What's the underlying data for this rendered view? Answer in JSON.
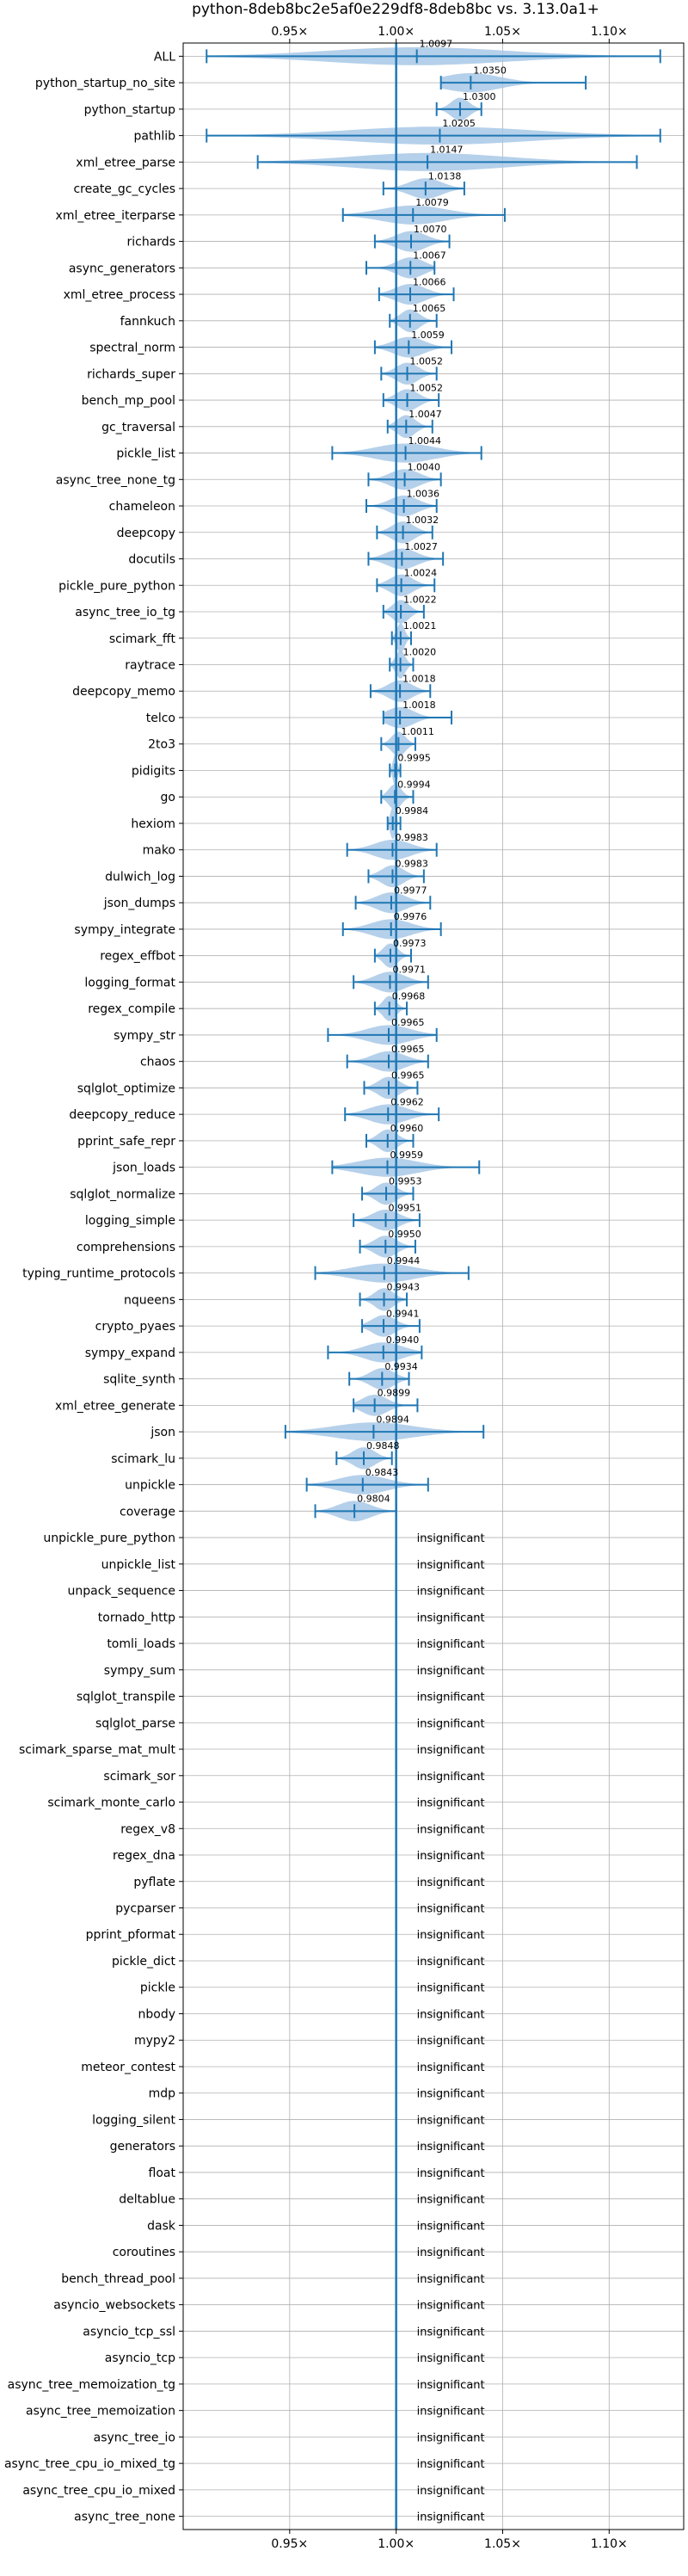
{
  "chart_data": {
    "type": "violin",
    "title": "python-8deb8bc2e5af0e229df8-8deb8bc vs. 3.13.0a1+",
    "xlim": [
      0.9,
      1.135
    ],
    "ticks": [
      0.95,
      1.0,
      1.05,
      1.1
    ],
    "tick_labels": [
      "0.95×",
      "1.00×",
      "1.05×",
      "1.10×"
    ],
    "reference_line": 1.0,
    "insignificant_label": "insignificant",
    "grid": true,
    "benchmarks": [
      {
        "name": "ALL",
        "mean": 1.0097,
        "label": "1.0097",
        "min": 0.911,
        "max": 1.124
      },
      {
        "name": "python_startup_no_site",
        "mean": 1.035,
        "label": "1.0350",
        "min": 1.021,
        "max": 1.089
      },
      {
        "name": "python_startup",
        "mean": 1.03,
        "label": "1.0300",
        "min": 1.019,
        "max": 1.04
      },
      {
        "name": "pathlib",
        "mean": 1.0205,
        "label": "1.0205",
        "min": 0.911,
        "max": 1.124
      },
      {
        "name": "xml_etree_parse",
        "mean": 1.0147,
        "label": "1.0147",
        "min": 0.935,
        "max": 1.113
      },
      {
        "name": "create_gc_cycles",
        "mean": 1.0138,
        "label": "1.0138",
        "min": 0.994,
        "max": 1.032
      },
      {
        "name": "xml_etree_iterparse",
        "mean": 1.0079,
        "label": "1.0079",
        "min": 0.975,
        "max": 1.051
      },
      {
        "name": "richards",
        "mean": 1.007,
        "label": "1.0070",
        "min": 0.99,
        "max": 1.025
      },
      {
        "name": "async_generators",
        "mean": 1.0067,
        "label": "1.0067",
        "min": 0.986,
        "max": 1.018
      },
      {
        "name": "xml_etree_process",
        "mean": 1.0066,
        "label": "1.0066",
        "min": 0.992,
        "max": 1.027
      },
      {
        "name": "fannkuch",
        "mean": 1.0065,
        "label": "1.0065",
        "min": 0.997,
        "max": 1.019
      },
      {
        "name": "spectral_norm",
        "mean": 1.0059,
        "label": "1.0059",
        "min": 0.99,
        "max": 1.026
      },
      {
        "name": "richards_super",
        "mean": 1.0052,
        "label": "1.0052",
        "min": 0.993,
        "max": 1.019
      },
      {
        "name": "bench_mp_pool",
        "mean": 1.0052,
        "label": "1.0052",
        "min": 0.994,
        "max": 1.02
      },
      {
        "name": "gc_traversal",
        "mean": 1.0047,
        "label": "1.0047",
        "min": 0.996,
        "max": 1.017
      },
      {
        "name": "pickle_list",
        "mean": 1.0044,
        "label": "1.0044",
        "min": 0.97,
        "max": 1.04
      },
      {
        "name": "async_tree_none_tg",
        "mean": 1.004,
        "label": "1.0040",
        "min": 0.987,
        "max": 1.021
      },
      {
        "name": "chameleon",
        "mean": 1.0036,
        "label": "1.0036",
        "min": 0.986,
        "max": 1.019
      },
      {
        "name": "deepcopy",
        "mean": 1.0032,
        "label": "1.0032",
        "min": 0.991,
        "max": 1.017
      },
      {
        "name": "docutils",
        "mean": 1.0027,
        "label": "1.0027",
        "min": 0.987,
        "max": 1.022
      },
      {
        "name": "pickle_pure_python",
        "mean": 1.0024,
        "label": "1.0024",
        "min": 0.991,
        "max": 1.018
      },
      {
        "name": "async_tree_io_tg",
        "mean": 1.0022,
        "label": "1.0022",
        "min": 0.994,
        "max": 1.013
      },
      {
        "name": "scimark_fft",
        "mean": 1.0021,
        "label": "1.0021",
        "min": 0.998,
        "max": 1.007
      },
      {
        "name": "raytrace",
        "mean": 1.002,
        "label": "1.0020",
        "min": 0.997,
        "max": 1.008
      },
      {
        "name": "deepcopy_memo",
        "mean": 1.0018,
        "label": "1.0018",
        "min": 0.988,
        "max": 1.016
      },
      {
        "name": "telco",
        "mean": 1.0018,
        "label": "1.0018",
        "min": 0.994,
        "max": 1.026
      },
      {
        "name": "2to3",
        "mean": 1.0011,
        "label": "1.0011",
        "min": 0.993,
        "max": 1.009
      },
      {
        "name": "pidigits",
        "mean": 0.9995,
        "label": "0.9995",
        "min": 0.997,
        "max": 1.002
      },
      {
        "name": "go",
        "mean": 0.9994,
        "label": "0.9994",
        "min": 0.993,
        "max": 1.008
      },
      {
        "name": "hexiom",
        "mean": 0.9984,
        "label": "0.9984",
        "min": 0.996,
        "max": 1.002
      },
      {
        "name": "mako",
        "mean": 0.9983,
        "label": "0.9983",
        "min": 0.977,
        "max": 1.019
      },
      {
        "name": "dulwich_log",
        "mean": 0.9983,
        "label": "0.9983",
        "min": 0.987,
        "max": 1.013
      },
      {
        "name": "json_dumps",
        "mean": 0.9977,
        "label": "0.9977",
        "min": 0.981,
        "max": 1.016
      },
      {
        "name": "sympy_integrate",
        "mean": 0.9976,
        "label": "0.9976",
        "min": 0.975,
        "max": 1.021
      },
      {
        "name": "regex_effbot",
        "mean": 0.9973,
        "label": "0.9973",
        "min": 0.99,
        "max": 1.007
      },
      {
        "name": "logging_format",
        "mean": 0.9971,
        "label": "0.9971",
        "min": 0.98,
        "max": 1.015
      },
      {
        "name": "regex_compile",
        "mean": 0.9968,
        "label": "0.9968",
        "min": 0.99,
        "max": 1.005
      },
      {
        "name": "sympy_str",
        "mean": 0.9965,
        "label": "0.9965",
        "min": 0.968,
        "max": 1.019
      },
      {
        "name": "chaos",
        "mean": 0.9965,
        "label": "0.9965",
        "min": 0.977,
        "max": 1.015
      },
      {
        "name": "sqlglot_optimize",
        "mean": 0.9965,
        "label": "0.9965",
        "min": 0.985,
        "max": 1.01
      },
      {
        "name": "deepcopy_reduce",
        "mean": 0.9962,
        "label": "0.9962",
        "min": 0.976,
        "max": 1.02
      },
      {
        "name": "pprint_safe_repr",
        "mean": 0.996,
        "label": "0.9960",
        "min": 0.986,
        "max": 1.008
      },
      {
        "name": "json_loads",
        "mean": 0.9959,
        "label": "0.9959",
        "min": 0.97,
        "max": 1.039
      },
      {
        "name": "sqlglot_normalize",
        "mean": 0.9953,
        "label": "0.9953",
        "min": 0.984,
        "max": 1.008
      },
      {
        "name": "logging_simple",
        "mean": 0.9951,
        "label": "0.9951",
        "min": 0.98,
        "max": 1.011
      },
      {
        "name": "comprehensions",
        "mean": 0.995,
        "label": "0.9950",
        "min": 0.983,
        "max": 1.009
      },
      {
        "name": "typing_runtime_protocols",
        "mean": 0.9944,
        "label": "0.9944",
        "min": 0.962,
        "max": 1.034
      },
      {
        "name": "nqueens",
        "mean": 0.9943,
        "label": "0.9943",
        "min": 0.983,
        "max": 1.005
      },
      {
        "name": "crypto_pyaes",
        "mean": 0.9941,
        "label": "0.9941",
        "min": 0.984,
        "max": 1.011
      },
      {
        "name": "sympy_expand",
        "mean": 0.994,
        "label": "0.9940",
        "min": 0.968,
        "max": 1.012
      },
      {
        "name": "sqlite_synth",
        "mean": 0.9934,
        "label": "0.9934",
        "min": 0.978,
        "max": 1.006
      },
      {
        "name": "xml_etree_generate",
        "mean": 0.9899,
        "label": "0.9899",
        "min": 0.98,
        "max": 1.01
      },
      {
        "name": "json",
        "mean": 0.9894,
        "label": "0.9894",
        "min": 0.948,
        "max": 1.041
      },
      {
        "name": "scimark_lu",
        "mean": 0.9848,
        "label": "0.9848",
        "min": 0.972,
        "max": 0.998
      },
      {
        "name": "unpickle",
        "mean": 0.9843,
        "label": "0.9843",
        "min": 0.958,
        "max": 1.015
      },
      {
        "name": "coverage",
        "mean": 0.9804,
        "label": "0.9804",
        "min": 0.962,
        "max": 1.0
      },
      {
        "name": "unpickle_pure_python",
        "mean": null,
        "label": "insignificant"
      },
      {
        "name": "unpickle_list",
        "mean": null,
        "label": "insignificant"
      },
      {
        "name": "unpack_sequence",
        "mean": null,
        "label": "insignificant"
      },
      {
        "name": "tornado_http",
        "mean": null,
        "label": "insignificant"
      },
      {
        "name": "tomli_loads",
        "mean": null,
        "label": "insignificant"
      },
      {
        "name": "sympy_sum",
        "mean": null,
        "label": "insignificant"
      },
      {
        "name": "sqlglot_transpile",
        "mean": null,
        "label": "insignificant"
      },
      {
        "name": "sqlglot_parse",
        "mean": null,
        "label": "insignificant"
      },
      {
        "name": "scimark_sparse_mat_mult",
        "mean": null,
        "label": "insignificant"
      },
      {
        "name": "scimark_sor",
        "mean": null,
        "label": "insignificant"
      },
      {
        "name": "scimark_monte_carlo",
        "mean": null,
        "label": "insignificant"
      },
      {
        "name": "regex_v8",
        "mean": null,
        "label": "insignificant"
      },
      {
        "name": "regex_dna",
        "mean": null,
        "label": "insignificant"
      },
      {
        "name": "pyflate",
        "mean": null,
        "label": "insignificant"
      },
      {
        "name": "pycparser",
        "mean": null,
        "label": "insignificant"
      },
      {
        "name": "pprint_pformat",
        "mean": null,
        "label": "insignificant"
      },
      {
        "name": "pickle_dict",
        "mean": null,
        "label": "insignificant"
      },
      {
        "name": "pickle",
        "mean": null,
        "label": "insignificant"
      },
      {
        "name": "nbody",
        "mean": null,
        "label": "insignificant"
      },
      {
        "name": "mypy2",
        "mean": null,
        "label": "insignificant"
      },
      {
        "name": "meteor_contest",
        "mean": null,
        "label": "insignificant"
      },
      {
        "name": "mdp",
        "mean": null,
        "label": "insignificant"
      },
      {
        "name": "logging_silent",
        "mean": null,
        "label": "insignificant"
      },
      {
        "name": "generators",
        "mean": null,
        "label": "insignificant"
      },
      {
        "name": "float",
        "mean": null,
        "label": "insignificant"
      },
      {
        "name": "deltablue",
        "mean": null,
        "label": "insignificant"
      },
      {
        "name": "dask",
        "mean": null,
        "label": "insignificant"
      },
      {
        "name": "coroutines",
        "mean": null,
        "label": "insignificant"
      },
      {
        "name": "bench_thread_pool",
        "mean": null,
        "label": "insignificant"
      },
      {
        "name": "asyncio_websockets",
        "mean": null,
        "label": "insignificant"
      },
      {
        "name": "asyncio_tcp_ssl",
        "mean": null,
        "label": "insignificant"
      },
      {
        "name": "asyncio_tcp",
        "mean": null,
        "label": "insignificant"
      },
      {
        "name": "async_tree_memoization_tg",
        "mean": null,
        "label": "insignificant"
      },
      {
        "name": "async_tree_memoization",
        "mean": null,
        "label": "insignificant"
      },
      {
        "name": "async_tree_io",
        "mean": null,
        "label": "insignificant"
      },
      {
        "name": "async_tree_cpu_io_mixed_tg",
        "mean": null,
        "label": "insignificant"
      },
      {
        "name": "async_tree_cpu_io_mixed",
        "mean": null,
        "label": "insignificant"
      },
      {
        "name": "async_tree_none",
        "mean": null,
        "label": "insignificant"
      }
    ],
    "colors": {
      "violin_fill": "#a8c8e6",
      "line": "#1f77b4",
      "grid": "#b0b0b0",
      "text": "#000000"
    }
  }
}
